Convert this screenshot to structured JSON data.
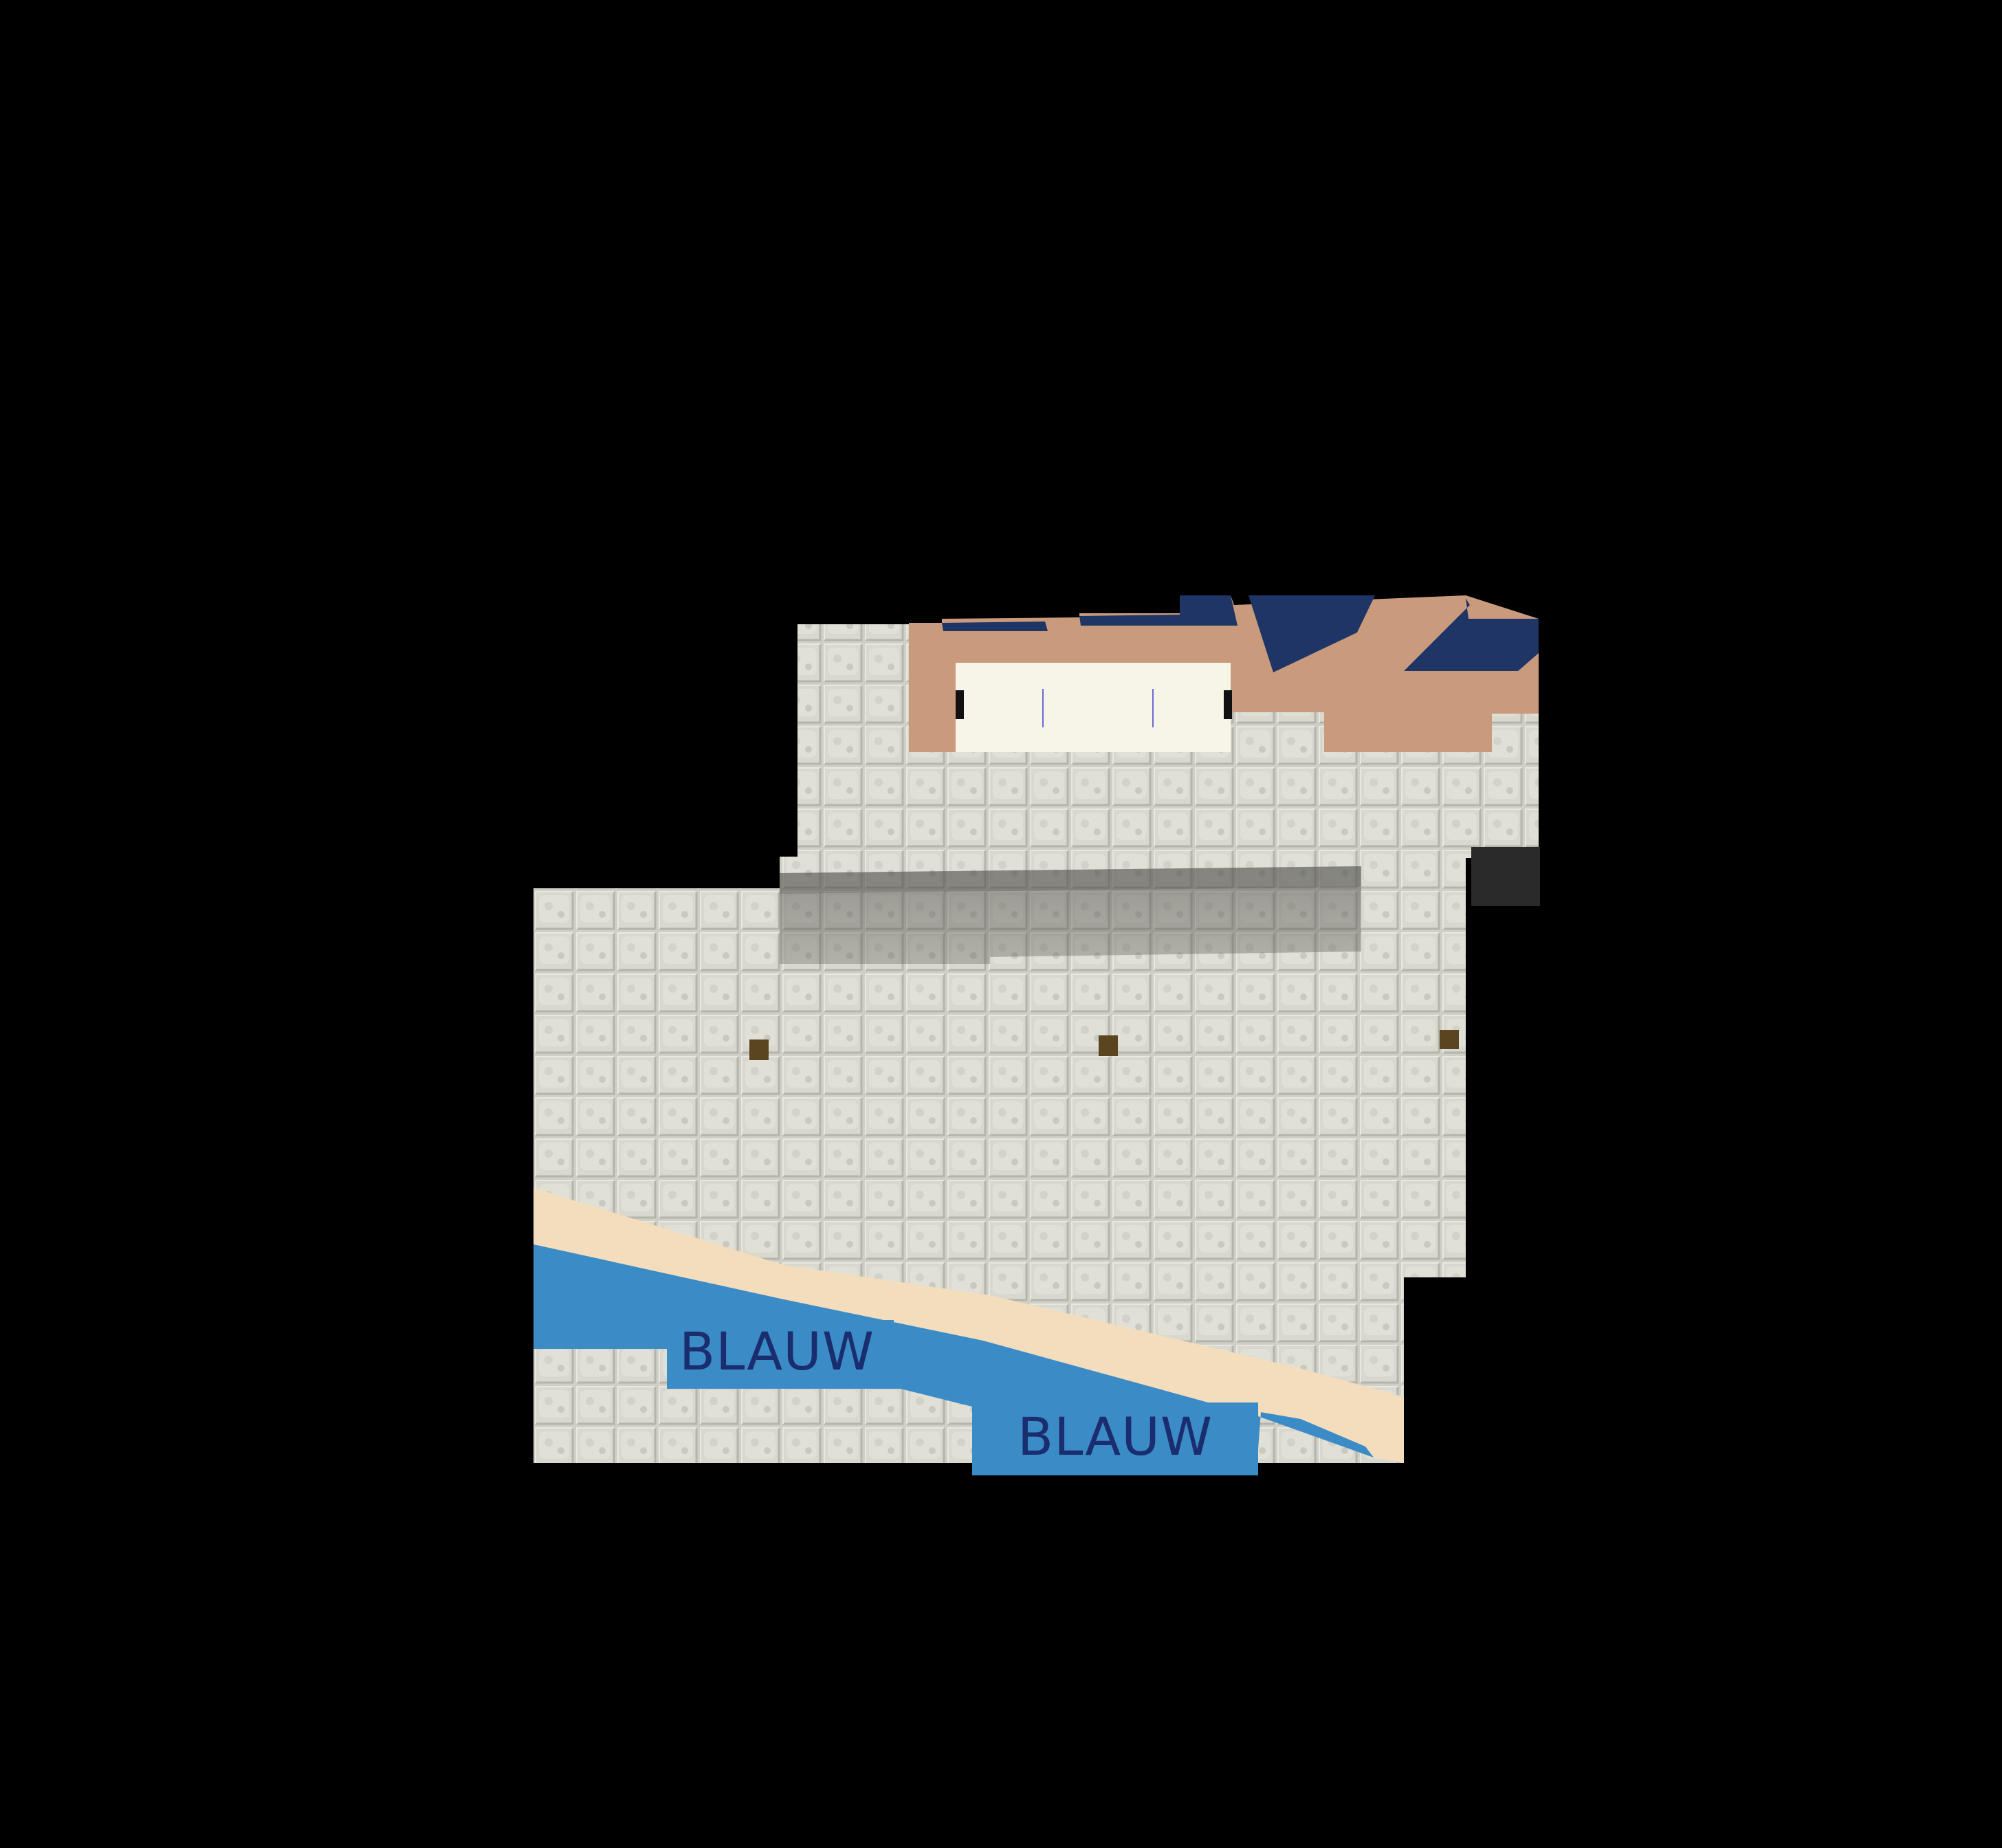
{
  "map": {
    "background_color": "#000000",
    "colors": {
      "stone_base": "#cfcfc6",
      "stone_tile_light": "#dcdcd3",
      "stone_tile_dark": "#b7b7ae",
      "shadow": "#7a7a72",
      "water": "#3b8bc6",
      "sand": "#f4ddbd",
      "roof_tan": "#c99a7c",
      "roof_navy": "#1f3566",
      "cream": "#f7f5e8",
      "label_text": "#1a2d6e",
      "dark_block": "#2a2a2a",
      "marker": "#5a4520"
    },
    "labels": [
      {
        "id": "water-label-1",
        "text": "BLAUW"
      },
      {
        "id": "water-label-2",
        "text": "BLAUW"
      }
    ],
    "markers": [
      {
        "id": "marker-1",
        "icon": "square-marker-icon"
      },
      {
        "id": "marker-2",
        "icon": "square-marker-icon"
      },
      {
        "id": "marker-3",
        "icon": "square-marker-icon"
      }
    ]
  }
}
